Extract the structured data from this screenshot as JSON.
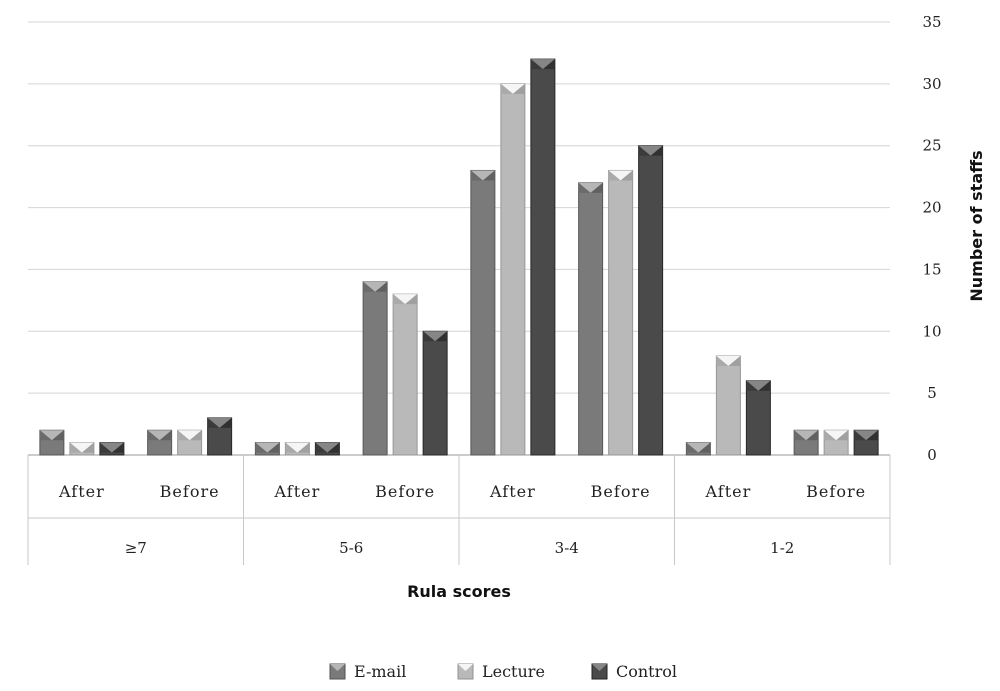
{
  "chart_data": {
    "type": "bar",
    "groups": [
      "≥7",
      "5-6",
      "3-4",
      "1-2"
    ],
    "subcategories": [
      "After",
      "Before"
    ],
    "categories": [
      "≥7 After",
      "≥7 Before",
      "5-6 After",
      "5-6 Before",
      "3-4 After",
      "3-4 Before",
      "1-2 After",
      "1-2 Before"
    ],
    "series": [
      {
        "name": "E-mail",
        "color": "#7a7a7a",
        "values": [
          2,
          2,
          1,
          14,
          23,
          22,
          1,
          2
        ]
      },
      {
        "name": "Lecture",
        "color": "#b9b9b9",
        "values": [
          1,
          2,
          1,
          13,
          30,
          23,
          8,
          2
        ]
      },
      {
        "name": "Control",
        "color": "#4a4a4a",
        "values": [
          1,
          3,
          1,
          10,
          32,
          25,
          6,
          2
        ]
      }
    ],
    "xlabel": "Rula scores",
    "ylabel": "Number of staffs",
    "ylim": [
      0,
      35
    ],
    "yticks": [
      0,
      5,
      10,
      15,
      20,
      25,
      30,
      35
    ],
    "grid": true,
    "y_axis_side": "right",
    "legend_position": "bottom"
  }
}
